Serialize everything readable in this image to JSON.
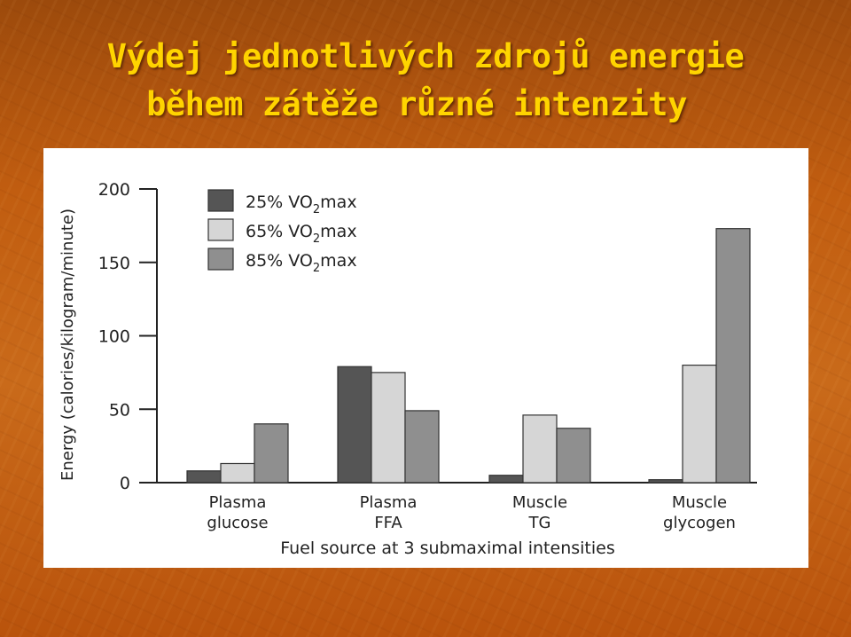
{
  "slide": {
    "title_line1": "Výdej jednotlivých zdrojů energie",
    "title_line2": "během zátěže různé intenzity",
    "colors": {
      "title": "#ffd400",
      "background": "#c15d10"
    }
  },
  "chart_data": {
    "type": "bar",
    "xlabel": "Fuel source at 3 submaximal intensities",
    "ylabel": "Energy (calories/kilogram/minute)",
    "ylim": [
      0,
      200
    ],
    "yticks": [
      "0",
      "50",
      "100",
      "150",
      "200"
    ],
    "categories": [
      [
        "Plasma",
        "glucose"
      ],
      [
        "Plasma",
        "FFA"
      ],
      [
        "Muscle",
        "TG"
      ],
      [
        "Muscle",
        "glycogen"
      ]
    ],
    "series": [
      {
        "name": "25% VO",
        "name_sub": "2",
        "name_suffix": "max",
        "color": "#555555",
        "values": [
          8,
          79,
          5,
          2
        ]
      },
      {
        "name": "65% VO",
        "name_sub": "2",
        "name_suffix": "max",
        "color": "#d6d6d6",
        "values": [
          13,
          75,
          46,
          80
        ]
      },
      {
        "name": "85% VO",
        "name_sub": "2",
        "name_suffix": "max",
        "color": "#8f8f8f",
        "values": [
          40,
          49,
          37,
          173
        ]
      }
    ],
    "grid": false,
    "legend": "top-left"
  }
}
